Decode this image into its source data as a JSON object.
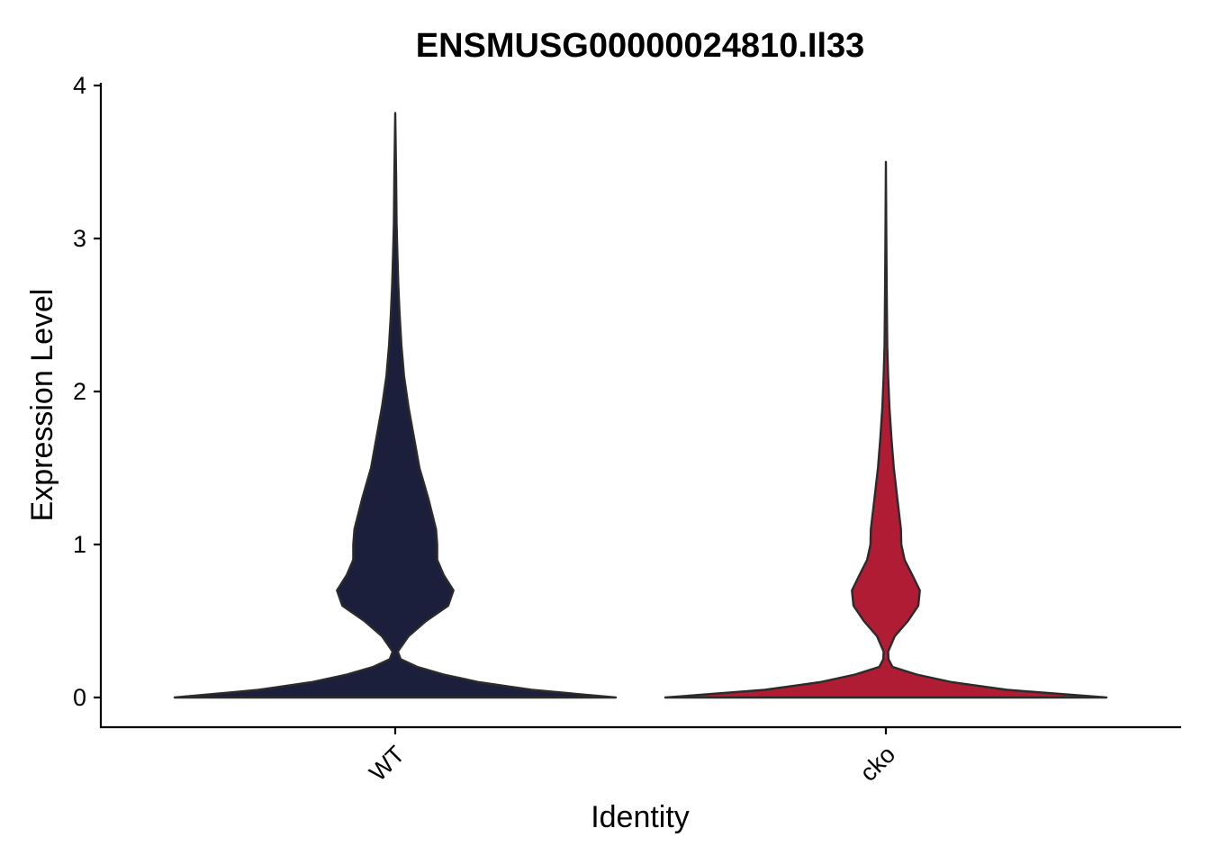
{
  "chart_data": {
    "type": "violin",
    "title": "ENSMUSG00000024810.Il33",
    "xlabel": "Identity",
    "ylabel": "Expression Level",
    "ylim": [
      -0.19,
      4.02
    ],
    "yticks": [
      0,
      1,
      2,
      3,
      4
    ],
    "categories": [
      "WT",
      "cko"
    ],
    "legend": "none",
    "grid": false,
    "series": [
      {
        "category": "WT",
        "color": "#1b1f3b",
        "max": 3.82,
        "density_profile": [
          [
            0.0,
            1.0
          ],
          [
            0.05,
            0.62
          ],
          [
            0.1,
            0.38
          ],
          [
            0.15,
            0.22
          ],
          [
            0.2,
            0.1
          ],
          [
            0.25,
            0.025
          ],
          [
            0.3,
            0.012
          ],
          [
            0.4,
            0.06
          ],
          [
            0.5,
            0.14
          ],
          [
            0.6,
            0.24
          ],
          [
            0.7,
            0.264
          ],
          [
            0.8,
            0.22
          ],
          [
            0.9,
            0.19
          ],
          [
            1.0,
            0.19
          ],
          [
            1.1,
            0.185
          ],
          [
            1.3,
            0.15
          ],
          [
            1.5,
            0.11
          ],
          [
            1.7,
            0.085
          ],
          [
            1.9,
            0.06
          ],
          [
            2.1,
            0.04
          ],
          [
            2.3,
            0.028
          ],
          [
            2.5,
            0.02
          ],
          [
            2.7,
            0.014
          ],
          [
            2.9,
            0.01
          ],
          [
            3.1,
            0.006
          ],
          [
            3.4,
            0.004
          ],
          [
            3.82,
            0.0
          ]
        ]
      },
      {
        "category": "cko",
        "color": "#b01c33",
        "max": 3.5,
        "density_profile": [
          [
            0.0,
            1.0
          ],
          [
            0.05,
            0.55
          ],
          [
            0.1,
            0.3
          ],
          [
            0.15,
            0.14
          ],
          [
            0.2,
            0.03
          ],
          [
            0.25,
            0.012
          ],
          [
            0.3,
            0.01
          ],
          [
            0.4,
            0.04
          ],
          [
            0.5,
            0.1
          ],
          [
            0.6,
            0.147
          ],
          [
            0.7,
            0.154
          ],
          [
            0.8,
            0.12
          ],
          [
            0.9,
            0.085
          ],
          [
            1.0,
            0.07
          ],
          [
            1.1,
            0.068
          ],
          [
            1.3,
            0.052
          ],
          [
            1.5,
            0.036
          ],
          [
            1.7,
            0.025
          ],
          [
            1.9,
            0.016
          ],
          [
            2.1,
            0.01
          ],
          [
            2.3,
            0.006
          ],
          [
            2.6,
            0.004
          ],
          [
            3.0,
            0.002
          ],
          [
            3.5,
            0.0
          ]
        ]
      }
    ]
  }
}
